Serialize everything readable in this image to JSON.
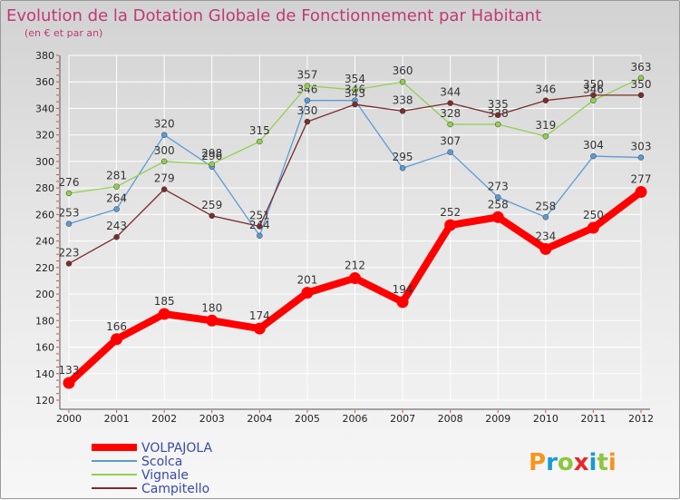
{
  "chart_data": {
    "type": "line",
    "title": "Evolution de la Dotation Globale de Fonctionnement par Habitant",
    "subtitle": "(en € et par an)",
    "x": [
      "2000",
      "2001",
      "2002",
      "2003",
      "2004",
      "2005",
      "2006",
      "2007",
      "2008",
      "2009",
      "2010",
      "2011",
      "2012"
    ],
    "y_ticks": [
      "120",
      "140",
      "160",
      "180",
      "200",
      "220",
      "240",
      "260",
      "280",
      "300",
      "320",
      "340",
      "360",
      "380"
    ],
    "ylim": [
      120,
      380
    ],
    "grid": true,
    "legend_position": "bottom-left",
    "series": [
      {
        "name": "VOLPAJOLA",
        "color": "#ff0000",
        "values": [
          133,
          166,
          185,
          180,
          174,
          201,
          212,
          194,
          252,
          258,
          234,
          250,
          277
        ],
        "labels": [
          "133",
          "166",
          "185",
          "180",
          "174",
          "201",
          "212",
          "194",
          "252",
          "258",
          "234",
          "250",
          "277"
        ]
      },
      {
        "name": "Scolca",
        "color": "#5b9bd5",
        "values": [
          253,
          264,
          320,
          296,
          244,
          346,
          346,
          295,
          307,
          273,
          258,
          304,
          303
        ],
        "labels": [
          "253",
          "264",
          "320",
          "296",
          "244",
          "346",
          "346",
          "295",
          "307",
          "273",
          "258",
          "304",
          "303"
        ]
      },
      {
        "name": "Vignale",
        "color": "#92d050",
        "values": [
          276,
          281,
          300,
          298,
          315,
          357,
          354,
          360,
          328,
          328,
          319,
          346,
          363
        ],
        "labels": [
          "276",
          "281",
          "300",
          "298",
          "315",
          "357",
          "354",
          "360",
          "328",
          "328",
          "319",
          "346",
          "363"
        ]
      },
      {
        "name": "Campitello",
        "color": "#7b2c2c",
        "values": [
          223,
          243,
          279,
          259,
          251,
          330,
          343,
          338,
          344,
          335,
          346,
          350,
          350
        ],
        "labels": [
          "223",
          "243",
          "279",
          "259",
          "251",
          "330",
          "343",
          "338",
          "344",
          "335",
          "346",
          "350",
          "350"
        ]
      }
    ]
  },
  "logo": {
    "text": "Proxiti",
    "letters": [
      "P",
      "r",
      "o",
      "x",
      "i",
      "t",
      "i"
    ]
  }
}
